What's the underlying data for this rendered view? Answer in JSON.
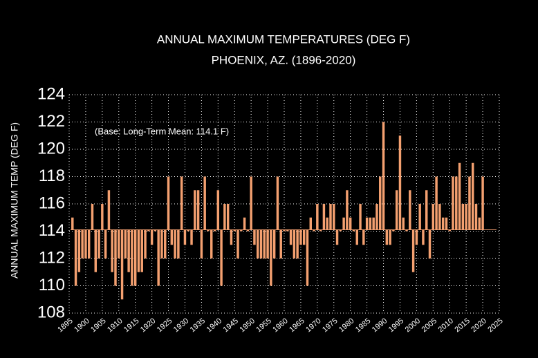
{
  "chart_data": {
    "type": "bar",
    "title": "ANNUAL MAXIMUM TEMPERATURES (DEG F)",
    "subtitle": "PHOENIX, AZ. (1896-2020)",
    "y_label": "ANNUAL MAXIMUM TEMP (DEG F)",
    "annotation": "(Base: Long-Term Mean: 114.1 F)",
    "base": 114.1,
    "color": "#f4a070",
    "grid": true,
    "x": [
      1896,
      1897,
      1898,
      1899,
      1900,
      1901,
      1902,
      1903,
      1904,
      1905,
      1906,
      1907,
      1908,
      1909,
      1910,
      1911,
      1912,
      1913,
      1914,
      1915,
      1916,
      1917,
      1918,
      1919,
      1920,
      1921,
      1922,
      1923,
      1924,
      1925,
      1926,
      1927,
      1928,
      1929,
      1930,
      1931,
      1932,
      1933,
      1934,
      1935,
      1936,
      1937,
      1938,
      1939,
      1940,
      1941,
      1942,
      1943,
      1944,
      1945,
      1946,
      1947,
      1948,
      1949,
      1950,
      1951,
      1952,
      1953,
      1954,
      1955,
      1956,
      1957,
      1958,
      1959,
      1960,
      1961,
      1962,
      1963,
      1964,
      1965,
      1966,
      1967,
      1968,
      1969,
      1970,
      1971,
      1972,
      1973,
      1974,
      1975,
      1976,
      1977,
      1978,
      1979,
      1980,
      1981,
      1982,
      1983,
      1984,
      1985,
      1986,
      1987,
      1988,
      1989,
      1990,
      1991,
      1992,
      1993,
      1994,
      1995,
      1996,
      1997,
      1998,
      1999,
      2000,
      2001,
      2002,
      2003,
      2004,
      2005,
      2006,
      2007,
      2008,
      2009,
      2010,
      2011,
      2012,
      2013,
      2014,
      2015,
      2016,
      2017,
      2018,
      2019,
      2020
    ],
    "values": [
      115,
      110,
      111,
      112,
      112,
      112,
      116,
      111,
      112,
      116,
      112,
      117,
      111,
      110,
      112,
      109,
      112,
      111,
      110,
      110,
      111,
      111,
      112,
      114,
      113,
      114,
      110,
      112,
      112,
      118,
      113,
      112,
      112,
      118,
      113,
      114,
      113,
      117,
      117,
      112,
      118,
      114,
      112,
      114,
      117,
      110,
      116,
      116,
      113,
      114,
      112,
      114,
      115,
      114,
      118,
      113,
      112,
      112,
      112,
      112,
      110,
      112,
      118,
      112,
      114,
      114,
      113,
      112,
      112,
      113,
      113,
      110,
      115,
      114,
      116,
      114,
      116,
      115,
      116,
      116,
      113,
      114,
      115,
      117,
      115,
      114,
      113,
      116,
      113,
      115,
      115,
      115,
      116,
      118,
      122,
      113,
      113,
      114,
      117,
      121,
      115,
      114,
      117,
      111,
      113,
      116,
      113,
      117,
      112,
      116,
      118,
      116,
      115,
      115,
      114,
      118,
      118,
      119,
      116,
      116,
      118,
      119,
      116,
      115,
      118
    ],
    "xlim": [
      1895,
      2025
    ],
    "xticks": [
      1895,
      1900,
      1905,
      1910,
      1915,
      1920,
      1925,
      1930,
      1935,
      1940,
      1945,
      1950,
      1955,
      1960,
      1965,
      1970,
      1975,
      1980,
      1985,
      1990,
      1995,
      2000,
      2005,
      2010,
      2015,
      2020,
      2025
    ],
    "ylim": [
      108,
      124
    ],
    "yticks": [
      108,
      110,
      112,
      114,
      116,
      118,
      120,
      122,
      124
    ]
  }
}
